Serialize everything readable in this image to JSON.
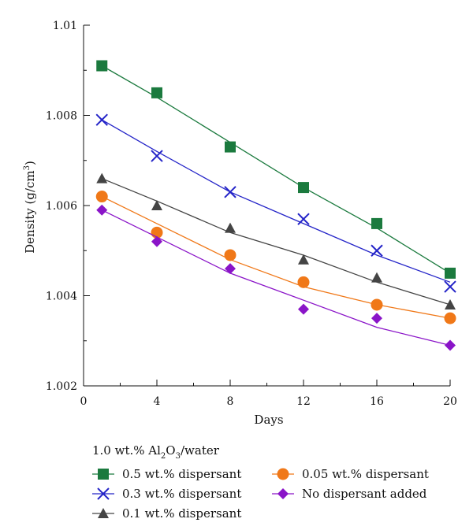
{
  "chart_data": {
    "type": "line",
    "title": "",
    "xlabel": "Days",
    "ylabel": {
      "base": "Density (g/cm",
      "sup": "3",
      "close": ")"
    },
    "xlim": [
      0,
      20
    ],
    "ylim": [
      1.002,
      1.01
    ],
    "xticks": [
      0,
      4,
      8,
      12,
      16,
      20
    ],
    "yticks": [
      1.002,
      1.004,
      1.006,
      1.008,
      1.01
    ],
    "xtick_labels": [
      "0",
      "4",
      "8",
      "12",
      "16",
      "20"
    ],
    "ytick_labels": [
      "1.002",
      "1.004",
      "1.006",
      "1.008",
      "1.01"
    ],
    "grid": false,
    "legend": {
      "placement": "bottom",
      "title": {
        "a": "1.0 wt.% Al",
        "s1": "2",
        "b": "O",
        "s2": "3",
        "c": "/water"
      }
    },
    "series": [
      {
        "name": "0.5 wt.% dispersant",
        "marker": "square",
        "color": "#1b7a3e",
        "x": [
          1,
          4,
          8,
          12,
          16,
          20
        ],
        "y": [
          1.0091,
          1.0085,
          1.0073,
          1.0064,
          1.0056,
          1.0045
        ],
        "fit": [
          1.0091,
          1.0084,
          1.0074,
          1.0064,
          1.0055,
          1.0045
        ]
      },
      {
        "name": "0.3 wt.% dispersant",
        "marker": "x",
        "color": "#2424c8",
        "x": [
          1,
          4,
          8,
          12,
          16,
          20
        ],
        "y": [
          1.0079,
          1.0071,
          1.0063,
          1.0057,
          1.005,
          1.0042
        ],
        "fit": [
          1.0079,
          1.0072,
          1.0063,
          1.0056,
          1.0049,
          1.0043
        ]
      },
      {
        "name": "0.1 wt.% dispersant",
        "marker": "triangle",
        "color": "#444444",
        "x": [
          1,
          4,
          8,
          12,
          16,
          20
        ],
        "y": [
          1.0066,
          1.006,
          1.0055,
          1.0048,
          1.0044,
          1.0038
        ],
        "fit": [
          1.0066,
          1.0061,
          1.0054,
          1.0049,
          1.0043,
          1.0038
        ]
      },
      {
        "name": "0.05 wt.% dispersant",
        "marker": "circle",
        "color": "#f07818",
        "x": [
          1,
          4,
          8,
          12,
          16,
          20
        ],
        "y": [
          1.0062,
          1.0054,
          1.0049,
          1.0043,
          1.0038,
          1.0035
        ],
        "fit": [
          1.0062,
          1.0056,
          1.0048,
          1.0042,
          1.0038,
          1.0035
        ]
      },
      {
        "name": "No dispersant added",
        "marker": "diamond",
        "color": "#8a14c8",
        "x": [
          1,
          4,
          8,
          12,
          16,
          20
        ],
        "y": [
          1.0059,
          1.0052,
          1.0046,
          1.0037,
          1.0035,
          1.0029
        ],
        "fit": [
          1.0059,
          1.0053,
          1.0045,
          1.0039,
          1.0033,
          1.0029
        ]
      }
    ]
  }
}
